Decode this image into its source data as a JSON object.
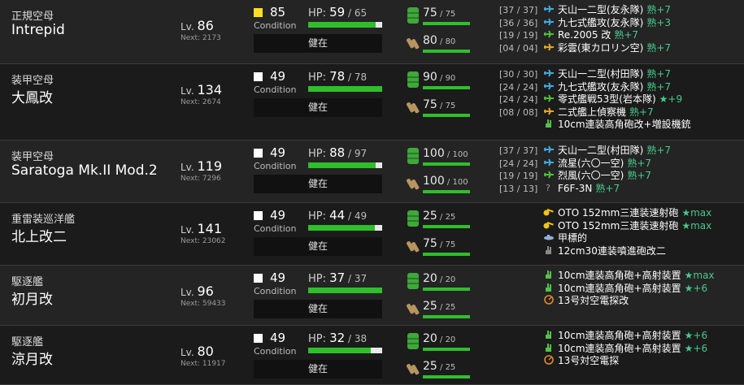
{
  "labels": {
    "lv": "Lv.",
    "next": "Next:",
    "hp": "HP:",
    "condition": "Condition",
    "status": "健在",
    "proficiency": "熟",
    "improvement_star": "★"
  },
  "colors": {
    "hp_bar_fill": "#2fbf2b",
    "hp_bar_empty": "#e9e9e9",
    "proficiency_text": "#47c98c",
    "improvement_text": "#47c98c",
    "condition_sparkle": "#ffdd22",
    "condition_normal": "#ffffff"
  },
  "ships": [
    {
      "type": "正規空母",
      "name": "Intrepid",
      "lv": "86",
      "next": "2173",
      "condition": "85",
      "condition_color": "#ffdd22",
      "hp_cur": "59",
      "hp_max": "65",
      "hp_fraction": 0.908,
      "status": "健在",
      "fuel_cur": "75",
      "fuel_max": "75",
      "ammo_cur": "80",
      "ammo_max": "80",
      "equipment": [
        {
          "slot": "[37 / 37]",
          "icon": "torpedo-bomber-icon",
          "name": "天山一二型(友永隊)",
          "prof": "熟+7"
        },
        {
          "slot": "[36 / 36]",
          "icon": "torpedo-bomber-icon",
          "name": "九七式艦攻(友永隊)",
          "prof": "熟+3"
        },
        {
          "slot": "[19 / 19]",
          "icon": "fighter-icon",
          "name": "Re.2005 改",
          "prof": "熟+7"
        },
        {
          "slot": "[04 / 04]",
          "icon": "recon-plane-icon",
          "name": "彩雲(東カロリン空)",
          "prof": "熟+7"
        }
      ]
    },
    {
      "type": "装甲空母",
      "name": "大鳳改",
      "lv": "134",
      "next": "2674",
      "condition": "49",
      "condition_color": "#ffffff",
      "hp_cur": "78",
      "hp_max": "78",
      "hp_fraction": 1.0,
      "status": "健在",
      "fuel_cur": "90",
      "fuel_max": "90",
      "ammo_cur": "75",
      "ammo_max": "75",
      "equipment": [
        {
          "slot": "[30 / 30]",
          "icon": "torpedo-bomber-icon",
          "name": "天山一二型(村田隊)",
          "prof": "熟+7"
        },
        {
          "slot": "[24 / 24]",
          "icon": "torpedo-bomber-icon",
          "name": "九七式艦攻(友永隊)",
          "prof": "熟+7"
        },
        {
          "slot": "[24 / 24]",
          "icon": "fighter-icon",
          "name": "零式艦戦53型(岩本隊)",
          "prof": "★+9"
        },
        {
          "slot": "[08 / 08]",
          "icon": "recon-plane-icon",
          "name": "二式艦上偵察機",
          "prof": "熟+7"
        },
        {
          "slot": "",
          "icon": "aa-gun-icon",
          "name": "10cm連装高角砲改+増設機銃",
          "prof": ""
        }
      ]
    },
    {
      "type": "装甲空母",
      "name": "Saratoga Mk.II Mod.2",
      "lv": "119",
      "next": "7296",
      "condition": "49",
      "condition_color": "#ffffff",
      "hp_cur": "88",
      "hp_max": "97",
      "hp_fraction": 0.907,
      "status": "健在",
      "fuel_cur": "100",
      "fuel_max": "100",
      "ammo_cur": "100",
      "ammo_max": "100",
      "equipment": [
        {
          "slot": "[37 / 37]",
          "icon": "torpedo-bomber-icon",
          "name": "天山一二型(村田隊)",
          "prof": "熟+7"
        },
        {
          "slot": "[24 / 24]",
          "icon": "torpedo-bomber-icon",
          "name": "流星(六〇一空)",
          "prof": "熟+7"
        },
        {
          "slot": "[19 / 19]",
          "icon": "fighter-icon",
          "name": "烈風(六〇一空)",
          "prof": "熟+7"
        },
        {
          "slot": "[13 / 13]",
          "icon": "unknown-plane-icon",
          "name": "F6F-3N",
          "prof": "熟+7"
        }
      ]
    },
    {
      "type": "重雷装巡洋艦",
      "name": "北上改二",
      "lv": "141",
      "next": "23062",
      "condition": "49",
      "condition_color": "#ffffff",
      "hp_cur": "44",
      "hp_max": "49",
      "hp_fraction": 0.898,
      "status": "健在",
      "fuel_cur": "25",
      "fuel_max": "25",
      "ammo_cur": "75",
      "ammo_max": "75",
      "equipment": [
        {
          "slot": "",
          "icon": "medium-gun-icon",
          "name": "OTO 152mm三連装速射砲",
          "prof": "★max"
        },
        {
          "slot": "",
          "icon": "medium-gun-icon",
          "name": "OTO 152mm三連装速射砲",
          "prof": "★max"
        },
        {
          "slot": "",
          "icon": "midget-sub-icon",
          "name": "甲標的",
          "prof": ""
        },
        {
          "slot": "",
          "icon": "rocket-launcher-icon",
          "name": "12cm30連装噴進砲改二",
          "prof": ""
        }
      ]
    },
    {
      "type": "駆逐艦",
      "name": "初月改",
      "lv": "96",
      "next": "59433",
      "condition": "49",
      "condition_color": "#ffffff",
      "hp_cur": "37",
      "hp_max": "37",
      "hp_fraction": 1.0,
      "status": "健在",
      "fuel_cur": "20",
      "fuel_max": "20",
      "ammo_cur": "25",
      "ammo_max": "25",
      "equipment": [
        {
          "slot": "",
          "icon": "high-angle-gun-icon",
          "name": "10cm連装高角砲+高射装置",
          "prof": "★max"
        },
        {
          "slot": "",
          "icon": "high-angle-gun-icon",
          "name": "10cm連装高角砲+高射装置",
          "prof": "★+6"
        },
        {
          "slot": "",
          "icon": "radar-icon",
          "name": "13号対空電探改",
          "prof": ""
        }
      ]
    },
    {
      "type": "駆逐艦",
      "name": "涼月改",
      "lv": "80",
      "next": "11917",
      "condition": "49",
      "condition_color": "#ffffff",
      "hp_cur": "32",
      "hp_max": "38",
      "hp_fraction": 0.842,
      "status": "健在",
      "fuel_cur": "20",
      "fuel_max": "20",
      "ammo_cur": "25",
      "ammo_max": "25",
      "equipment": [
        {
          "slot": "",
          "icon": "high-angle-gun-icon",
          "name": "10cm連装高角砲+高射装置",
          "prof": "★+6"
        },
        {
          "slot": "",
          "icon": "high-angle-gun-icon",
          "name": "10cm連装高角砲+高射装置",
          "prof": "★+6"
        },
        {
          "slot": "",
          "icon": "radar-icon",
          "name": "13号対空電探",
          "prof": ""
        }
      ]
    }
  ]
}
